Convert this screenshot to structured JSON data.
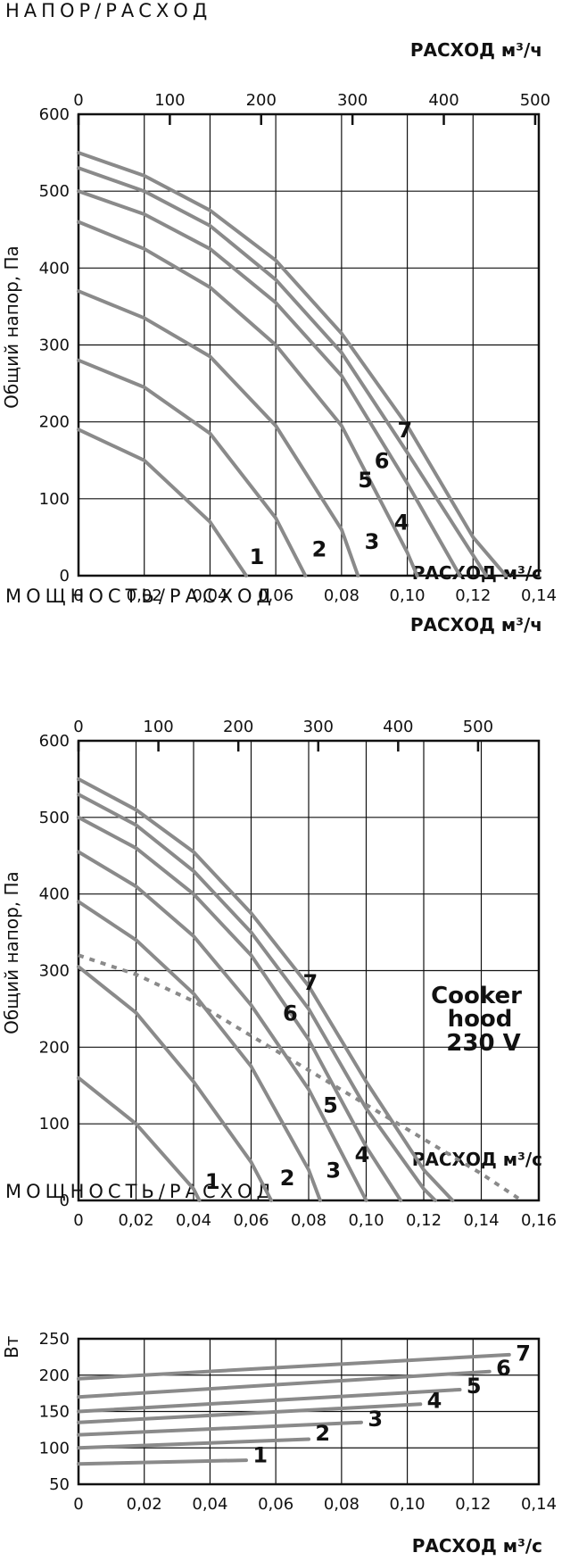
{
  "sections": [
    {
      "title": "НАПОР/РАСХОД",
      "top_xlabel": "РАСХОД м³/ч",
      "bottom_xlabel": "РАСХОД м³/с"
    },
    {
      "title": "МОЩНОСТЬ/РАСХОД",
      "top_xlabel": "РАСХОД м³/ч",
      "bottom_xlabel": "РАСХОД м³/с"
    },
    {
      "title": "МОЩНОСТЬ/РАСХОД",
      "bottom_xlabel": "РАСХОД м³/с"
    }
  ],
  "chart_data": [
    {
      "type": "line",
      "ylabel": "Общий напор, Па",
      "xlabel": "РАСХОД м³/с",
      "x2label": "РАСХОД м³/ч",
      "xlim": [
        0,
        0.14
      ],
      "ylim": [
        0,
        600
      ],
      "xticks": [
        "0",
        "0,02",
        "0,04",
        "0,06",
        "0,08",
        "0,10",
        "0,12",
        "0,14"
      ],
      "x2ticks": [
        "0",
        "100",
        "200",
        "300",
        "400",
        "500"
      ],
      "yticks": [
        "0",
        "100",
        "200",
        "300",
        "400",
        "500",
        "600"
      ],
      "grid": true,
      "series": [
        {
          "name": "1",
          "x": [
            0,
            0.02,
            0.04,
            0.051
          ],
          "y": [
            190,
            150,
            70,
            0
          ]
        },
        {
          "name": "2",
          "x": [
            0,
            0.02,
            0.04,
            0.06,
            0.069
          ],
          "y": [
            280,
            245,
            185,
            75,
            0
          ]
        },
        {
          "name": "3",
          "x": [
            0,
            0.02,
            0.04,
            0.06,
            0.08,
            0.085
          ],
          "y": [
            370,
            335,
            285,
            195,
            60,
            0
          ]
        },
        {
          "name": "4",
          "x": [
            0,
            0.02,
            0.04,
            0.06,
            0.08,
            0.1,
            0.103
          ],
          "y": [
            460,
            425,
            375,
            300,
            195,
            30,
            0
          ]
        },
        {
          "name": "5",
          "x": [
            0,
            0.02,
            0.04,
            0.06,
            0.08,
            0.1,
            0.116
          ],
          "y": [
            500,
            470,
            425,
            355,
            260,
            120,
            0
          ]
        },
        {
          "name": "6",
          "x": [
            0,
            0.02,
            0.04,
            0.06,
            0.08,
            0.1,
            0.124
          ],
          "y": [
            530,
            500,
            455,
            385,
            290,
            160,
            0
          ]
        },
        {
          "name": "7",
          "x": [
            0,
            0.02,
            0.04,
            0.06,
            0.08,
            0.1,
            0.12,
            0.13
          ],
          "y": [
            550,
            520,
            475,
            410,
            315,
            195,
            50,
            0
          ]
        }
      ],
      "labels": [
        {
          "text": "1",
          "x": 0.052,
          "y": 15
        },
        {
          "text": "2",
          "x": 0.071,
          "y": 25
        },
        {
          "text": "3",
          "x": 0.087,
          "y": 35
        },
        {
          "text": "4",
          "x": 0.096,
          "y": 60
        },
        {
          "text": "5",
          "x": 0.085,
          "y": 115
        },
        {
          "text": "6",
          "x": 0.09,
          "y": 140
        },
        {
          "text": "7",
          "x": 0.097,
          "y": 180
        }
      ]
    },
    {
      "type": "line",
      "ylabel": "Общий напор, Па",
      "xlabel": "РАСХОД м³/с",
      "x2label": "РАСХОД м³/ч",
      "xlim": [
        0,
        0.16
      ],
      "ylim": [
        0,
        600
      ],
      "xticks": [
        "0",
        "0,02",
        "0,04",
        "0,06",
        "0,08",
        "0,10",
        "0,12",
        "0,14",
        "0,16"
      ],
      "x2ticks": [
        "0",
        "100",
        "200",
        "300",
        "400",
        "500"
      ],
      "yticks": [
        "0",
        "100",
        "200",
        "300",
        "400",
        "500",
        "600"
      ],
      "grid": true,
      "series": [
        {
          "name": "1",
          "x": [
            0,
            0.02,
            0.04,
            0.042
          ],
          "y": [
            160,
            100,
            15,
            0
          ]
        },
        {
          "name": "2",
          "x": [
            0,
            0.02,
            0.04,
            0.06,
            0.067
          ],
          "y": [
            305,
            245,
            155,
            50,
            0
          ]
        },
        {
          "name": "3",
          "x": [
            0,
            0.02,
            0.04,
            0.06,
            0.08,
            0.084
          ],
          "y": [
            390,
            340,
            270,
            175,
            40,
            0
          ]
        },
        {
          "name": "4",
          "x": [
            0,
            0.02,
            0.04,
            0.06,
            0.08,
            0.1
          ],
          "y": [
            455,
            410,
            345,
            255,
            145,
            0
          ]
        },
        {
          "name": "5",
          "x": [
            0,
            0.02,
            0.04,
            0.06,
            0.08,
            0.1,
            0.112
          ],
          "y": [
            500,
            460,
            400,
            320,
            210,
            70,
            0
          ]
        },
        {
          "name": "6",
          "x": [
            0,
            0.02,
            0.04,
            0.06,
            0.08,
            0.1,
            0.12,
            0.124
          ],
          "y": [
            530,
            490,
            430,
            350,
            250,
            120,
            15,
            0
          ]
        },
        {
          "name": "7",
          "x": [
            0,
            0.02,
            0.04,
            0.06,
            0.08,
            0.1,
            0.12,
            0.13
          ],
          "y": [
            550,
            510,
            455,
            375,
            280,
            155,
            40,
            0
          ]
        },
        {
          "name": "Cooker hood 230 V",
          "dashed": true,
          "x": [
            0,
            0.02,
            0.04,
            0.06,
            0.08,
            0.1,
            0.12,
            0.14,
            0.154
          ],
          "y": [
            320,
            295,
            260,
            215,
            170,
            125,
            80,
            35,
            0
          ]
        }
      ],
      "labels": [
        {
          "text": "1",
          "x": 0.044,
          "y": 15
        },
        {
          "text": "2",
          "x": 0.07,
          "y": 20
        },
        {
          "text": "3",
          "x": 0.086,
          "y": 30
        },
        {
          "text": "4",
          "x": 0.096,
          "y": 50
        },
        {
          "text": "5",
          "x": 0.085,
          "y": 115
        },
        {
          "text": "6",
          "x": 0.071,
          "y": 235
        },
        {
          "text": "7",
          "x": 0.078,
          "y": 275
        }
      ],
      "annotation": [
        "Cooker",
        "hood",
        "230 V"
      ]
    },
    {
      "type": "line",
      "ylabel": "Вт",
      "xlabel": "РАСХОД м³/с",
      "xlim": [
        0,
        0.14
      ],
      "ylim": [
        50,
        250
      ],
      "xticks": [
        "0",
        "0,02",
        "0,04",
        "0,06",
        "0,08",
        "0,10",
        "0,12",
        "0,14"
      ],
      "yticks": [
        "50",
        "100",
        "150",
        "200",
        "250"
      ],
      "grid": true,
      "series": [
        {
          "name": "1",
          "x": [
            0,
            0.051
          ],
          "y": [
            78,
            83
          ]
        },
        {
          "name": "2",
          "x": [
            0,
            0.07
          ],
          "y": [
            100,
            112
          ]
        },
        {
          "name": "3",
          "x": [
            0,
            0.086
          ],
          "y": [
            118,
            135
          ]
        },
        {
          "name": "4",
          "x": [
            0,
            0.104
          ],
          "y": [
            135,
            160
          ]
        },
        {
          "name": "5",
          "x": [
            0,
            0.116
          ],
          "y": [
            150,
            180
          ]
        },
        {
          "name": "6",
          "x": [
            0,
            0.125
          ],
          "y": [
            170,
            205
          ]
        },
        {
          "name": "7",
          "x": [
            0,
            0.131
          ],
          "y": [
            195,
            228
          ]
        }
      ],
      "labels": [
        {
          "text": "1",
          "x": 0.053,
          "y": 80
        },
        {
          "text": "2",
          "x": 0.072,
          "y": 110
        },
        {
          "text": "3",
          "x": 0.088,
          "y": 130
        },
        {
          "text": "4",
          "x": 0.106,
          "y": 155
        },
        {
          "text": "5",
          "x": 0.118,
          "y": 175
        },
        {
          "text": "6",
          "x": 0.127,
          "y": 200
        },
        {
          "text": "7",
          "x": 0.133,
          "y": 220
        }
      ]
    }
  ]
}
